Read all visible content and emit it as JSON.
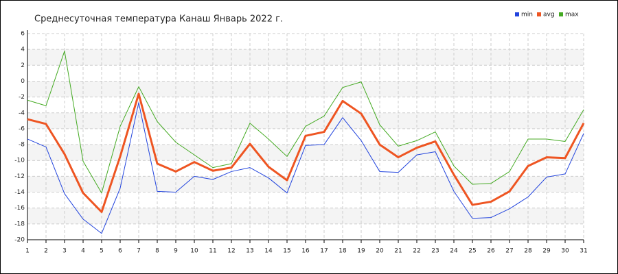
{
  "chart_data": {
    "type": "line",
    "title": "Среднесуточная температура Канаш  Январь 2022 г.",
    "x": [
      1,
      2,
      3,
      4,
      5,
      6,
      7,
      8,
      9,
      10,
      11,
      12,
      13,
      14,
      15,
      16,
      17,
      18,
      19,
      20,
      21,
      22,
      23,
      24,
      25,
      26,
      27,
      28,
      29,
      30,
      31
    ],
    "xlim": [
      1,
      31
    ],
    "xticks": [
      1,
      2,
      3,
      4,
      5,
      6,
      7,
      8,
      9,
      10,
      11,
      12,
      13,
      14,
      15,
      16,
      17,
      18,
      19,
      20,
      21,
      22,
      23,
      24,
      25,
      26,
      27,
      28,
      29,
      30,
      31
    ],
    "ylim": [
      -20,
      6
    ],
    "yticks": [
      6,
      4,
      2,
      0,
      -2,
      -4,
      -6,
      -8,
      -10,
      -12,
      -14,
      -16,
      -18,
      -20
    ],
    "grid": true,
    "legend": "top-right",
    "series": [
      {
        "name": "min",
        "color": "#2244dd",
        "values": [
          -7.3,
          -8.3,
          -14.2,
          -17.4,
          -19.2,
          -13.5,
          -2.7,
          -13.9,
          -14.0,
          -12.0,
          -12.4,
          -11.4,
          -10.9,
          -12.2,
          -14.1,
          -8.1,
          -8.0,
          -4.6,
          -7.5,
          -11.4,
          -11.5,
          -9.3,
          -8.9,
          -13.9,
          -17.3,
          -17.2,
          -16.1,
          -14.6,
          -12.1,
          -11.7,
          -6.6
        ]
      },
      {
        "name": "avg",
        "color": "#ee5522",
        "values": [
          -4.8,
          -5.4,
          -9.2,
          -14.1,
          -16.5,
          -9.5,
          -1.6,
          -10.4,
          -11.4,
          -10.2,
          -11.3,
          -10.9,
          -7.9,
          -10.8,
          -12.5,
          -6.9,
          -6.4,
          -2.5,
          -4.1,
          -8.0,
          -9.6,
          -8.4,
          -7.6,
          -11.8,
          -15.6,
          -15.2,
          -13.9,
          -10.7,
          -9.6,
          -9.7,
          -5.3
        ]
      },
      {
        "name": "max",
        "color": "#44aa22",
        "values": [
          -2.4,
          -3.1,
          3.8,
          -10.1,
          -14.1,
          -5.7,
          -0.7,
          -5.1,
          -7.7,
          -9.3,
          -10.9,
          -10.4,
          -5.3,
          -7.3,
          -9.5,
          -5.7,
          -4.4,
          -0.8,
          -0.1,
          -5.5,
          -8.2,
          -7.5,
          -6.4,
          -10.7,
          -13.0,
          -12.9,
          -11.4,
          -7.3,
          -7.3,
          -7.6,
          -3.6
        ]
      }
    ]
  }
}
